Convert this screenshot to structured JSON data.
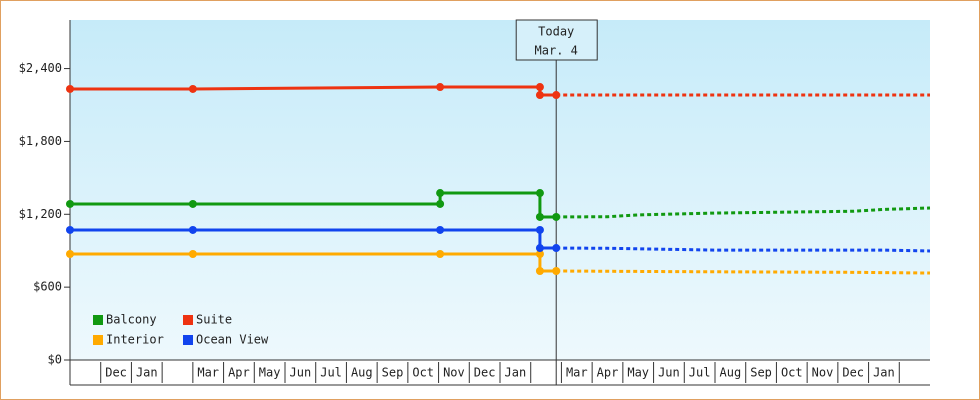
{
  "chart_data": {
    "type": "line",
    "categories": [
      null,
      "Dec",
      "Jan",
      null,
      "Mar",
      "Apr",
      "May",
      "Jun",
      "Jul",
      "Aug",
      "Sep",
      "Oct",
      "Nov",
      "Dec",
      "Jan",
      null,
      "Mar",
      "Apr",
      "May",
      "Jun",
      "Jul",
      "Aug",
      "Sep",
      "Oct",
      "Nov",
      "Dec",
      "Jan",
      null
    ],
    "xlim": [
      0,
      28
    ],
    "ylim": [
      0,
      2800
    ],
    "yticks": [
      {
        "value": 0,
        "label": "$0"
      },
      {
        "value": 600,
        "label": "$600"
      },
      {
        "value": 1200,
        "label": "$1,200"
      },
      {
        "value": 1800,
        "label": "$1,800"
      },
      {
        "value": 2400,
        "label": "$2,400"
      }
    ],
    "today": {
      "label": [
        "Today",
        "Mar. 4"
      ],
      "x": 15.83
    },
    "series": [
      {
        "name": "Balcony",
        "color": "#119911",
        "x": [
          0,
          4,
          12.05,
          12.05,
          15.3,
          15.3,
          15.83
        ],
        "values": [
          1285,
          1285,
          1285,
          1375,
          1375,
          1178,
          1178
        ],
        "forecast_x": [
          15.83,
          17.5,
          18.5,
          21,
          25.5,
          26.5,
          28
        ],
        "forecast_values": [
          1178,
          1180,
          1195,
          1210,
          1225,
          1240,
          1252
        ]
      },
      {
        "name": "Suite",
        "color": "#ee3311",
        "x": [
          0,
          4,
          12.05,
          15.3,
          15.3,
          15.83
        ],
        "values": [
          2232,
          2232,
          2248,
          2248,
          2182,
          2182
        ],
        "forecast_x": [
          15.83,
          28
        ],
        "forecast_values": [
          2182,
          2182
        ]
      },
      {
        "name": "Interior",
        "color": "#ffaa00",
        "x": [
          0,
          4,
          12.05,
          15.3,
          15.3,
          15.83
        ],
        "values": [
          873,
          873,
          873,
          873,
          733,
          733
        ],
        "forecast_x": [
          15.83,
          19.5,
          25.5,
          28
        ],
        "forecast_values": [
          733,
          728,
          722,
          716
        ]
      },
      {
        "name": "Ocean View",
        "color": "#1144ee",
        "x": [
          0,
          4,
          12.05,
          15.3,
          15.3,
          15.83
        ],
        "values": [
          1071,
          1071,
          1071,
          1071,
          922,
          922
        ],
        "forecast_x": [
          15.83,
          17.5,
          21,
          26.5,
          28
        ],
        "forecast_values": [
          922,
          920,
          905,
          905,
          898
        ]
      }
    ]
  }
}
